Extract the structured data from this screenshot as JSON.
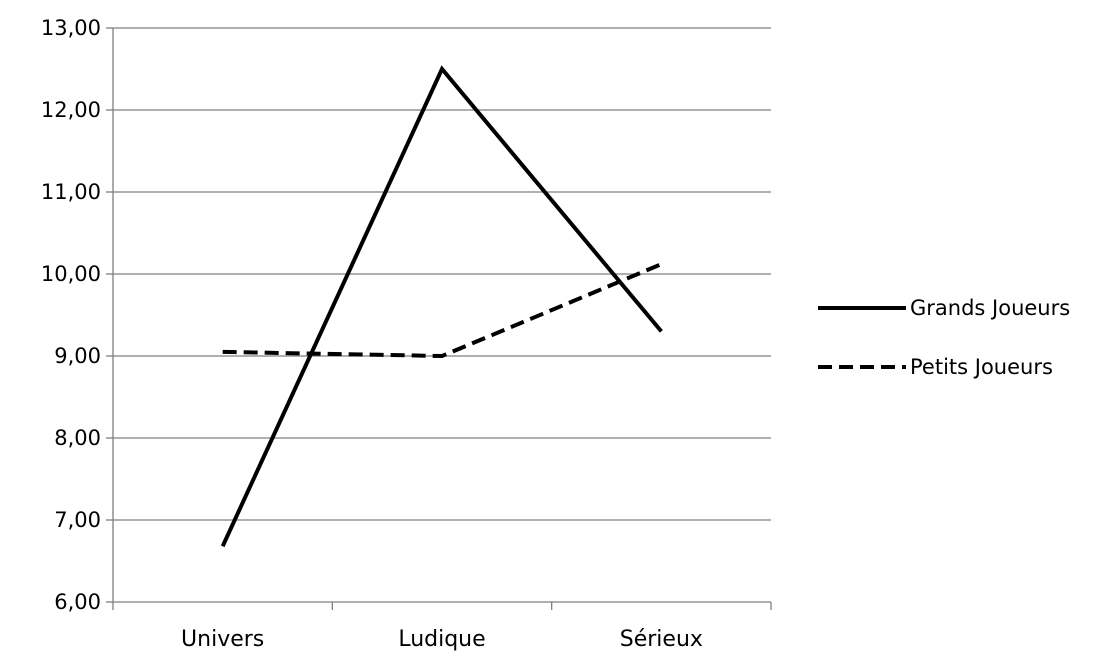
{
  "chart_data": {
    "type": "line",
    "categories": [
      "Univers",
      "Ludique",
      "Sérieux"
    ],
    "series": [
      {
        "name": "Grands Joueurs",
        "values": [
          6.68,
          12.5,
          9.3
        ],
        "dash": "solid"
      },
      {
        "name": "Petits Joueurs",
        "values": [
          9.05,
          9.0,
          10.12
        ],
        "dash": "dashed"
      }
    ],
    "ylim": [
      6,
      13
    ],
    "yticks": [
      "6,00",
      "7,00",
      "8,00",
      "9,00",
      "10,00",
      "11,00",
      "12,00",
      "13,00"
    ],
    "title": "",
    "xlabel": "",
    "ylabel": "",
    "grid": true,
    "legend_position": "right",
    "colors": {
      "line": "#000000",
      "grid": "#7f7f7f",
      "axis": "#7f7f7f"
    }
  }
}
